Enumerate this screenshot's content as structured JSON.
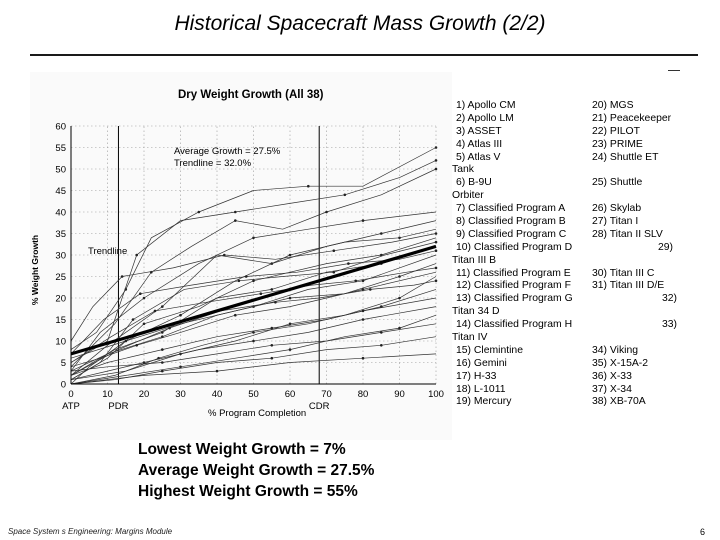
{
  "slide": {
    "title": "Historical Spacecraft Mass Growth (2/2)",
    "footer": "Space System s Engineering: Margins Module",
    "page_number": "6"
  },
  "chart_data": {
    "type": "line",
    "title": "Dry Weight Growth (All 38)",
    "xlabel": "% Program Completion",
    "ylabel": "% Weight Growth",
    "xlim": [
      0,
      100
    ],
    "ylim": [
      0,
      60
    ],
    "x_ticks": [
      "0",
      "10",
      "20",
      "30",
      "40",
      "50",
      "60",
      "70",
      "80",
      "90",
      "100"
    ],
    "y_ticks": [
      "0",
      "5",
      "10",
      "15",
      "20",
      "25",
      "30",
      "35",
      "40",
      "45",
      "50",
      "55",
      "60"
    ],
    "milestones": [
      {
        "label": "ATP",
        "x": 0
      },
      {
        "label": "PDR",
        "x": 13
      },
      {
        "label": "CDR",
        "x": 68
      }
    ],
    "annotations": [
      "Average Growth = 27.5%",
      "Trendline = 32.0%"
    ],
    "trendline": {
      "label": "Trendline",
      "x": [
        0,
        100
      ],
      "y": [
        7,
        32
      ]
    },
    "series": [
      {
        "name": "hi1",
        "x": [
          0,
          7,
          15,
          22,
          35,
          50,
          65,
          80,
          100
        ],
        "y": [
          8,
          12,
          22,
          34,
          40,
          45,
          46,
          46,
          55
        ]
      },
      {
        "name": "hi2",
        "x": [
          0,
          10,
          18,
          30,
          45,
          60,
          75,
          90,
          100
        ],
        "y": [
          5,
          10,
          30,
          38,
          40,
          42,
          44,
          48,
          52
        ]
      },
      {
        "name": "hi3",
        "x": [
          0,
          12,
          22,
          33,
          45,
          58,
          70,
          85,
          100
        ],
        "y": [
          4,
          14,
          26,
          32,
          38,
          36,
          40,
          44,
          50
        ]
      },
      {
        "name": "s4",
        "x": [
          0,
          8,
          20,
          35,
          50,
          65,
          80,
          100
        ],
        "y": [
          3,
          12,
          20,
          28,
          34,
          36,
          38,
          40
        ]
      },
      {
        "name": "s5",
        "x": [
          0,
          10,
          25,
          40,
          55,
          70,
          85,
          100
        ],
        "y": [
          2,
          9,
          18,
          30,
          28,
          32,
          35,
          38
        ]
      },
      {
        "name": "s6",
        "x": [
          0,
          15,
          30,
          45,
          60,
          75,
          90,
          100
        ],
        "y": [
          6,
          10,
          16,
          24,
          30,
          33,
          34,
          36
        ]
      },
      {
        "name": "s7",
        "x": [
          0,
          10,
          20,
          35,
          50,
          70,
          85,
          100
        ],
        "y": [
          1,
          6,
          14,
          18,
          24,
          28,
          30,
          34
        ]
      },
      {
        "name": "s8",
        "x": [
          0,
          12,
          25,
          40,
          55,
          70,
          85,
          100
        ],
        "y": [
          2,
          8,
          12,
          20,
          22,
          26,
          28,
          32
        ]
      },
      {
        "name": "s9",
        "x": [
          0,
          5,
          15,
          30,
          50,
          65,
          80,
          100
        ],
        "y": [
          0,
          4,
          10,
          14,
          18,
          22,
          24,
          30
        ]
      },
      {
        "name": "s10",
        "x": [
          0,
          10,
          25,
          40,
          60,
          75,
          90,
          100
        ],
        "y": [
          3,
          7,
          11,
          16,
          20,
          21,
          25,
          28
        ]
      },
      {
        "name": "s11",
        "x": [
          0,
          8,
          18,
          30,
          45,
          60,
          80,
          100
        ],
        "y": [
          4,
          6,
          9,
          12,
          16,
          18,
          22,
          26
        ]
      },
      {
        "name": "s12",
        "x": [
          0,
          15,
          30,
          45,
          60,
          75,
          90,
          100
        ],
        "y": [
          1,
          3,
          7,
          10,
          14,
          16,
          20,
          25
        ]
      },
      {
        "name": "s13",
        "x": [
          0,
          10,
          25,
          40,
          55,
          70,
          85,
          100
        ],
        "y": [
          2,
          5,
          8,
          11,
          13,
          15,
          18,
          22
        ]
      },
      {
        "name": "s14",
        "x": [
          0,
          12,
          24,
          36,
          50,
          65,
          80,
          100
        ],
        "y": [
          0,
          2,
          6,
          9,
          12,
          14,
          17,
          20
        ]
      },
      {
        "name": "s15",
        "x": [
          0,
          10,
          20,
          35,
          50,
          65,
          80,
          100
        ],
        "y": [
          1,
          3,
          5,
          8,
          10,
          12,
          15,
          18
        ]
      },
      {
        "name": "s16",
        "x": [
          0,
          15,
          30,
          45,
          60,
          75,
          90,
          100
        ],
        "y": [
          0,
          2,
          4,
          6,
          8,
          11,
          13,
          16
        ]
      },
      {
        "name": "s17",
        "x": [
          0,
          10,
          25,
          40,
          55,
          70,
          85,
          100
        ],
        "y": [
          3,
          4,
          5,
          7,
          9,
          10,
          12,
          14
        ]
      },
      {
        "name": "s18",
        "x": [
          0,
          12,
          25,
          40,
          55,
          70,
          85,
          100
        ],
        "y": [
          0,
          1,
          3,
          5,
          6,
          8,
          9,
          11
        ]
      },
      {
        "name": "low",
        "x": [
          0,
          20,
          40,
          60,
          80,
          100
        ],
        "y": [
          0,
          2,
          3,
          5,
          6,
          7
        ]
      },
      {
        "name": "s20",
        "x": [
          0,
          6,
          14,
          28,
          42,
          56,
          72,
          88,
          100
        ],
        "y": [
          10,
          18,
          25,
          27,
          30,
          29,
          31,
          33,
          35
        ]
      },
      {
        "name": "s21",
        "x": [
          0,
          9,
          19,
          33,
          48,
          62,
          76,
          90,
          100
        ],
        "y": [
          7,
          15,
          21,
          23,
          25,
          26,
          28,
          29,
          31
        ]
      },
      {
        "name": "s22",
        "x": [
          0,
          11,
          23,
          37,
          52,
          66,
          78,
          92,
          100
        ],
        "y": [
          5,
          11,
          17,
          19,
          21,
          23,
          24,
          26,
          27
        ]
      },
      {
        "name": "s23",
        "x": [
          0,
          13,
          27,
          41,
          56,
          68,
          82,
          94,
          100
        ],
        "y": [
          2,
          8,
          13,
          17,
          19,
          20,
          22,
          23,
          24
        ]
      },
      {
        "name": "s24",
        "x": [
          0,
          8,
          17,
          31,
          46,
          58,
          72,
          86,
          100
        ],
        "y": [
          1,
          5,
          15,
          22,
          24,
          25,
          26,
          30,
          33
        ]
      }
    ]
  },
  "legend": {
    "rows": [
      {
        "c1": "1) Apollo CM",
        "c2": "20) MGS"
      },
      {
        "c1": "2) Apollo LM",
        "c2": "21) Peacekeeper"
      },
      {
        "c1": "3) ASSET",
        "c2": "22) PILOT"
      },
      {
        "c1": "4) Atlas III",
        "c2": "23) PRIME"
      },
      {
        "c1": "5) Atlas V",
        "c2": "24) Shuttle ET"
      },
      {
        "cont": "Tank"
      },
      {
        "c1": "6) B-9U",
        "c2": "25) Shuttle"
      },
      {
        "cont": "Orbiter"
      },
      {
        "c1": "7) Classified Program A",
        "c2": "26) Skylab"
      },
      {
        "c1": "8) Classified Program B",
        "c2": "27) Titan I"
      },
      {
        "c1": "9) Classified Program C",
        "c2": "28) Titan II SLV"
      },
      {
        "c1": "10) Classified Program D",
        "c2": "29)"
      },
      {
        "cont": "Titan III B"
      },
      {
        "c1": "11) Classified Program E",
        "c2": "30) Titan III C"
      },
      {
        "c1": "12) Classified Program F",
        "c2": "31) Titan III D/E"
      },
      {
        "c1": "13) Classified Program G",
        "c2": "32)"
      },
      {
        "cont": "Titan 34 D"
      },
      {
        "c1": "14) Classified Program H",
        "c2": "33)"
      },
      {
        "cont": "Titan IV"
      },
      {
        "c1": "15) Clemintine",
        "c2": "34) Viking"
      },
      {
        "c1": "16) Gemini",
        "c2": "35) X-15A-2"
      },
      {
        "c1": "17) H-33",
        "c2": "36) X-33"
      },
      {
        "c1": "18) L-1011",
        "c2": "37) X-34"
      },
      {
        "c1": "19) Mercury",
        "c2": "38) XB-70A"
      }
    ]
  },
  "summary": {
    "lowest": "Lowest Weight Growth = 7%",
    "average": "Average Weight Growth = 27.5%",
    "highest": "Highest Weight Growth = 55%"
  }
}
